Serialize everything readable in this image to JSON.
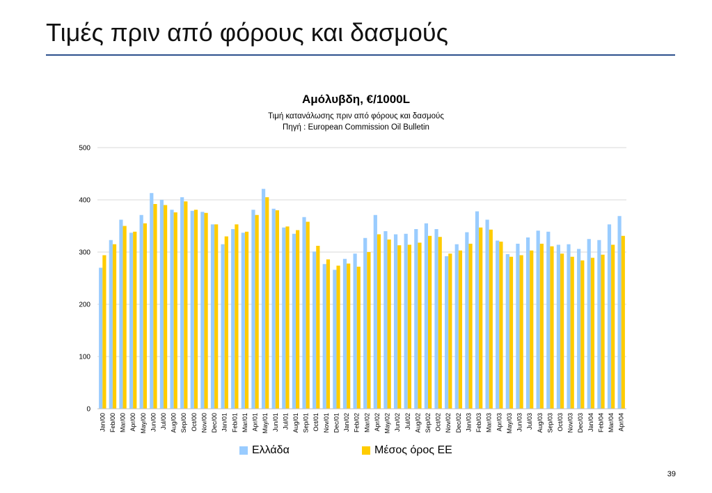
{
  "slide": {
    "title": "Τιμές πριν από φόρους και δασμούς",
    "page_number": "39"
  },
  "colors": {
    "series_1": "#99ccff",
    "series_2": "#ffcc00",
    "title_rule": "#2c4f8c",
    "gridline": "#d9d9d9"
  },
  "chart_data": {
    "type": "bar",
    "title": "Αμόλυβδη, €/1000L",
    "subtitle_lines": [
      "Τιμή κατανάλωσης πριν από φόρους και δασμούς",
      "Πηγή : European Commission Oil Bulletin"
    ],
    "xlabel": "",
    "ylabel": "",
    "ylim": [
      0,
      500
    ],
    "yticks": [
      0,
      100,
      200,
      300,
      400,
      500
    ],
    "grid": true,
    "legend_position": "bottom",
    "categories": [
      "Jan/00",
      "Feb/00",
      "Mar/00",
      "Apr/00",
      "May/00",
      "Jun/00",
      "Jul/00",
      "Aug/00",
      "Sep/00",
      "Oct/00",
      "Nov/00",
      "Dec/00",
      "Jan/01",
      "Feb/01",
      "Mar/01",
      "Apr/01",
      "May/01",
      "Jun/01",
      "Jul/01",
      "Aug/01",
      "Sep/01",
      "Oct/01",
      "Nov/01",
      "Dec/01",
      "Jan/02",
      "Feb/02",
      "Mar/02",
      "Apr/02",
      "May/02",
      "Jun/02",
      "Jul/02",
      "Aug/02",
      "Sep/02",
      "Oct/02",
      "Nov/02",
      "Dec/02",
      "Jan/03",
      "Feb/03",
      "Mar/03",
      "Apr/03",
      "May/03",
      "Jun/03",
      "Jul/03",
      "Aug/03",
      "Sep/03",
      "Oct/03",
      "Nov/03",
      "Dec/03",
      "Jan/04",
      "Feb/04",
      "Mar/04",
      "Apr/04"
    ],
    "series": [
      {
        "name": "Ελλάδα",
        "values": [
          270,
          323,
          362,
          337,
          371,
          413,
          400,
          381,
          405,
          379,
          377,
          353,
          315,
          344,
          337,
          381,
          421,
          383,
          347,
          335,
          367,
          301,
          277,
          266,
          287,
          297,
          327,
          371,
          340,
          334,
          335,
          344,
          355,
          344,
          292,
          315,
          338,
          378,
          362,
          322,
          296,
          316,
          328,
          341,
          339,
          314,
          315,
          306,
          325,
          323,
          353,
          369
        ]
      },
      {
        "name": "Μέσος όρος ΕΕ",
        "values": [
          294,
          315,
          350,
          339,
          355,
          392,
          390,
          376,
          397,
          381,
          375,
          353,
          330,
          353,
          339,
          371,
          405,
          380,
          349,
          342,
          358,
          312,
          286,
          274,
          278,
          272,
          300,
          334,
          324,
          313,
          314,
          318,
          331,
          329,
          297,
          303,
          316,
          347,
          343,
          320,
          291,
          294,
          303,
          316,
          311,
          297,
          291,
          284,
          289,
          295,
          314,
          331
        ]
      }
    ]
  }
}
